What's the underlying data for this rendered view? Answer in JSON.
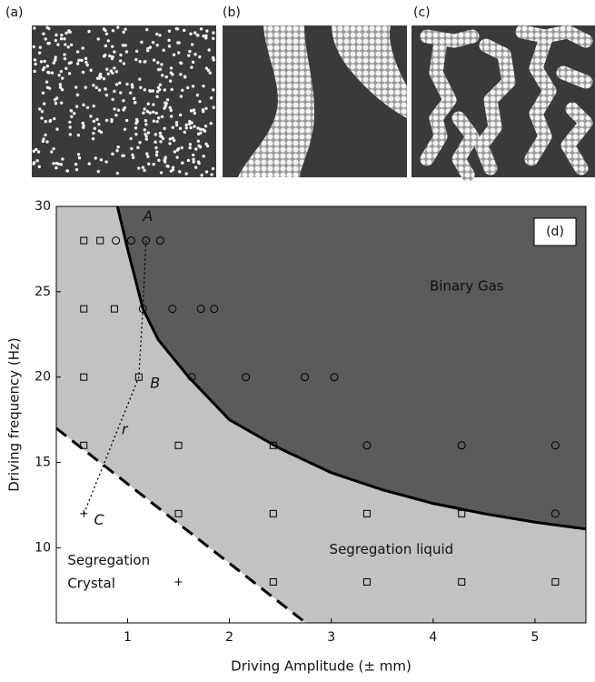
{
  "panels": [
    {
      "label": "(a)"
    },
    {
      "label": "(b)"
    },
    {
      "label": "(c)"
    }
  ],
  "chart_data": {
    "type": "scatter",
    "panel_label": "(d)",
    "xlabel": "Driving Amplitude (± mm)",
    "ylabel": "Driving frequency (Hz)",
    "xlim": [
      0.3,
      5.5
    ],
    "ylim": [
      5.6,
      30
    ],
    "xticks": [
      1,
      2,
      3,
      4,
      5
    ],
    "yticks": [
      10,
      15,
      20,
      25,
      30
    ],
    "regions": {
      "above_solid": "#5b5b5b",
      "between": "#c2c2c2",
      "below_dashed": "#ffffff"
    },
    "lines": [
      {
        "style": "solid",
        "x": [
          0.9,
          1.0,
          1.15,
          1.3,
          1.6,
          2.0,
          2.5,
          3.0,
          3.5,
          4.0,
          4.5,
          5.0,
          5.5
        ],
        "y": [
          30,
          27.5,
          24,
          22.2,
          20,
          17.5,
          15.8,
          14.4,
          13.4,
          12.6,
          12.0,
          11.5,
          11.1
        ]
      },
      {
        "style": "dashed",
        "x": [
          0.3,
          2.75
        ],
        "y": [
          17,
          5.6
        ]
      },
      {
        "style": "dotted",
        "x": [
          1.18,
          1.15,
          1.11,
          0.57
        ],
        "y": [
          28,
          24,
          20,
          12
        ]
      }
    ],
    "series": [
      {
        "marker": "square",
        "color": "#000000",
        "x": [
          0.57,
          0.73,
          0.57,
          0.87,
          0.57,
          1.11,
          0.57,
          1.5,
          2.43,
          1.5,
          2.43,
          3.35,
          4.28,
          2.43,
          3.35,
          4.28,
          5.2
        ],
        "y": [
          28,
          28,
          24,
          24,
          20,
          20,
          16,
          16,
          16,
          12,
          12,
          12,
          12,
          8,
          8,
          8,
          8
        ]
      },
      {
        "marker": "circle",
        "color": "#000000",
        "x": [
          0.885,
          1.035,
          1.18,
          1.32,
          1.15,
          1.44,
          1.72,
          1.85,
          1.63,
          2.16,
          2.74,
          3.03,
          3.35,
          4.28,
          5.2,
          5.2
        ],
        "y": [
          28,
          28,
          28,
          28,
          24,
          24,
          24,
          24,
          20,
          20,
          20,
          20,
          16,
          16,
          16,
          12
        ]
      },
      {
        "marker": "plus",
        "color": "#000000",
        "x": [
          0.57,
          1.5
        ],
        "y": [
          12,
          8
        ]
      }
    ],
    "annotations": [
      {
        "text": "A",
        "x": 1.2,
        "y": 29.4,
        "italic": true,
        "anchor": "middle"
      },
      {
        "text": "B",
        "x": 1.27,
        "y": 19.6,
        "italic": true,
        "anchor": "middle"
      },
      {
        "text": "C",
        "x": 0.72,
        "y": 11.6,
        "italic": true,
        "anchor": "middle"
      },
      {
        "text": "r",
        "x": 0.97,
        "y": 16.9,
        "italic": true,
        "anchor": "middle"
      },
      {
        "text": "Binary Gas",
        "x": 4.33,
        "y": 25.3,
        "italic": false,
        "anchor": "middle"
      },
      {
        "text": "Segregation liquid",
        "x": 3.59,
        "y": 9.9,
        "italic": false,
        "anchor": "middle"
      },
      {
        "text": "Segregation",
        "x": 0.41,
        "y": 9.25,
        "italic": false,
        "anchor": "start"
      },
      {
        "text": "Crystal",
        "x": 0.41,
        "y": 7.9,
        "italic": false,
        "anchor": "start"
      }
    ]
  }
}
